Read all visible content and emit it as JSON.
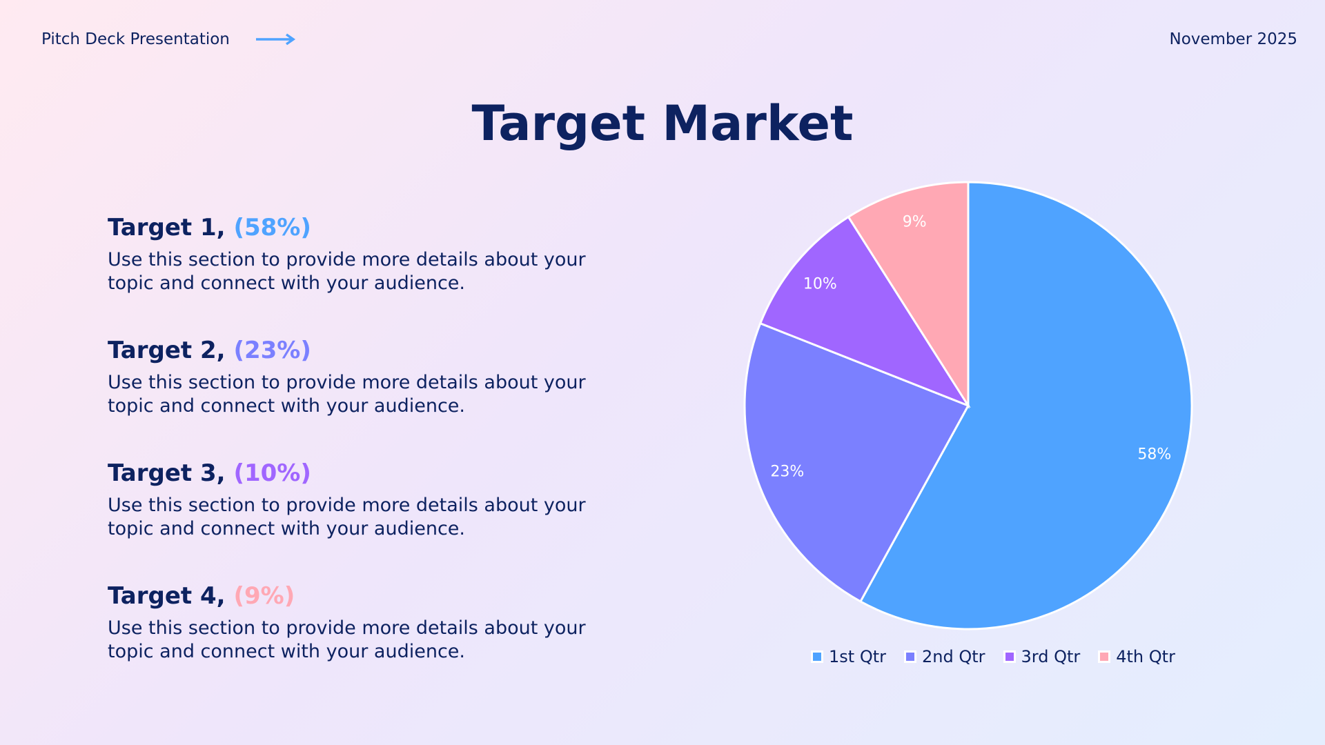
{
  "header": {
    "title": "Pitch Deck Presentation",
    "date": "November 2025",
    "arrow_icon": "arrow-right-icon",
    "accent": "#4fa3ff"
  },
  "title": "Target Market",
  "targets": [
    {
      "name": "Target 1,",
      "pct": "(58%)",
      "color": "#4fa3ff",
      "body": "Use this section to provide more details about your topic and connect with your audience."
    },
    {
      "name": "Target 2,",
      "pct": "(23%)",
      "color": "#7b80ff",
      "body": "Use this section to provide more details about your topic and connect with your audience."
    },
    {
      "name": "Target 3,",
      "pct": "(10%)",
      "color": "#a066ff",
      "body": "Use this section to provide more details about your topic and connect with your audience."
    },
    {
      "name": "Target 4,",
      "pct": "(9%)",
      "color": "#ffa8b4",
      "body": "Use this section to provide more details about your topic and connect with your audience."
    }
  ],
  "chart_data": {
    "type": "pie",
    "categories": [
      "1st Qtr",
      "2nd Qtr",
      "3rd Qtr",
      "4th Qtr"
    ],
    "values": [
      58,
      23,
      10,
      9
    ],
    "data_labels": [
      "58%",
      "23%",
      "10%",
      "9%"
    ],
    "colors": [
      "#4fa3ff",
      "#7b80ff",
      "#a066ff",
      "#ffa8b4"
    ],
    "legend_position": "bottom",
    "start_angle": "top, clockwise"
  }
}
